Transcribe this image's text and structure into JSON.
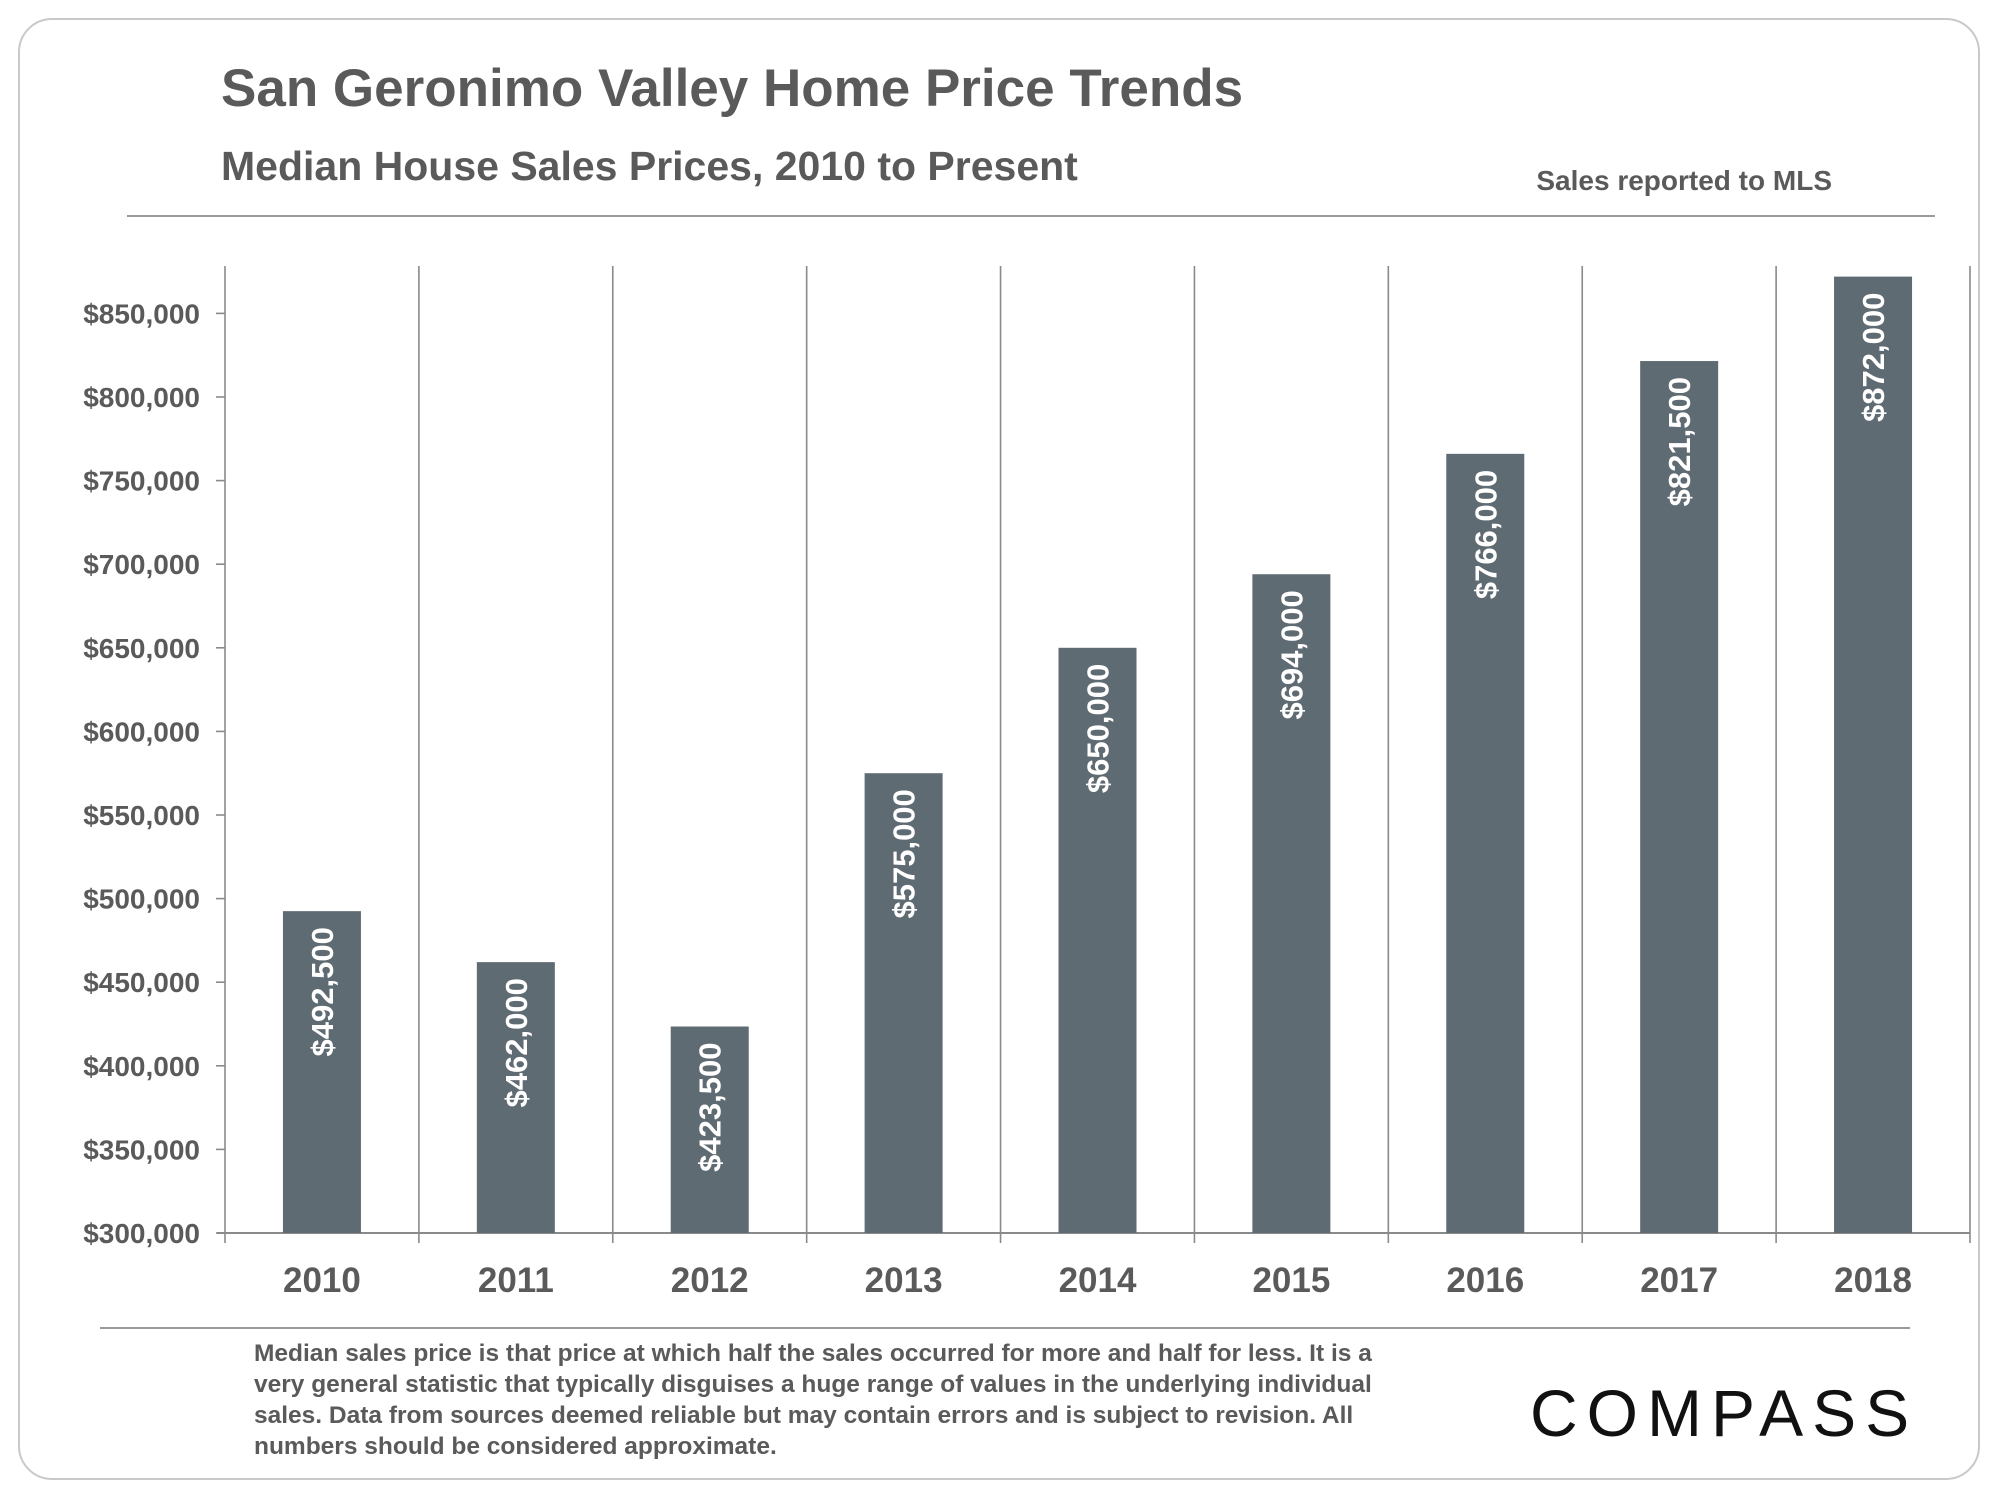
{
  "header": {
    "title": "San Geronimo Valley Home Price Trends",
    "subtitle": "Median House Sales Prices, 2010 to Present",
    "source_note": "Sales reported to MLS"
  },
  "chart_data": {
    "type": "bar",
    "title": "",
    "xlabel": "",
    "ylabel": "",
    "categories": [
      "2010",
      "2011",
      "2012",
      "2013",
      "2014",
      "2015",
      "2016",
      "2017",
      "2018"
    ],
    "values": [
      492500,
      462000,
      423500,
      575000,
      650000,
      694000,
      766000,
      821500,
      872000
    ],
    "value_labels": [
      "$492,500",
      "$462,000",
      "$423,500",
      "$575,000",
      "$650,000",
      "$694,000",
      "$766,000",
      "$821,500",
      "$872,000"
    ],
    "ylim": [
      300000,
      880000
    ],
    "y_ticks": [
      300000,
      350000,
      400000,
      450000,
      500000,
      550000,
      600000,
      650000,
      700000,
      750000,
      800000,
      850000
    ],
    "y_tick_labels": [
      "$300,000",
      "$350,000",
      "$400,000",
      "$450,000",
      "$500,000",
      "$550,000",
      "$600,000",
      "$650,000",
      "$700,000",
      "$750,000",
      "$800,000",
      "$850,000"
    ],
    "grid": "vertical category separators",
    "bar_color": "#5f6b72",
    "legend": "none"
  },
  "footer": {
    "footnote": "Median sales price is that price at which half the sales occurred for more and half for less. It is a very general statistic that typically disguises a huge range of values in the underlying individual sales. Data from sources deemed reliable but may contain errors and is subject to revision. All numbers should be considered approximate.",
    "logo_text": "COMPASS"
  },
  "colors": {
    "text": "#5a5a5a",
    "bar": "#5f6b72",
    "axis": "#8a8a8a",
    "logo": "#111111"
  }
}
